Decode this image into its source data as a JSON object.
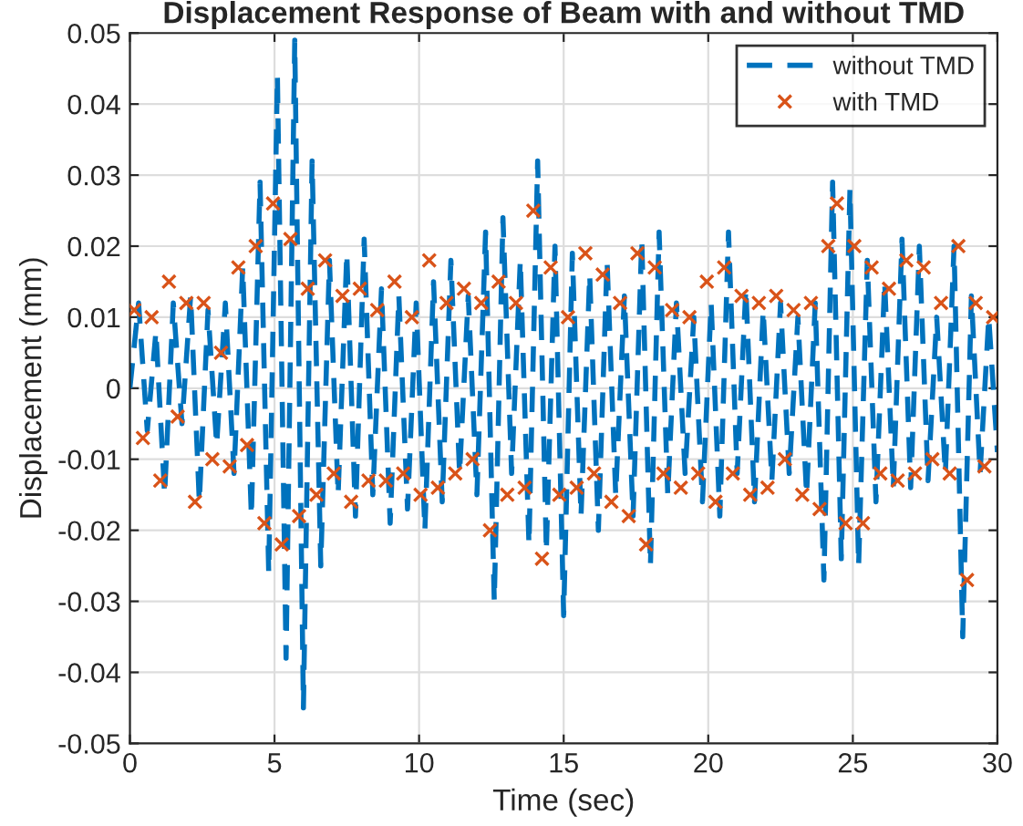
{
  "chart_data": {
    "type": "line",
    "title": "Displacement Response of Beam with and without TMD",
    "xlabel": "Time (sec)",
    "ylabel": "Displacement (mm)",
    "xlim": [
      0,
      30
    ],
    "xticks": [
      0,
      5,
      10,
      15,
      20,
      25,
      30
    ],
    "ylim": [
      -0.05,
      0.05
    ],
    "yticks": [
      -0.05,
      -0.04,
      -0.03,
      -0.02,
      -0.01,
      0,
      0.01,
      0.02,
      0.03,
      0.04,
      0.05
    ],
    "grid": true,
    "legend": "top right",
    "series": [
      {
        "name": "without TMD",
        "line_style": "dashed",
        "marker": "none",
        "color": "#0072bd",
        "x": [
          0,
          0.3,
          0.6,
          0.9,
          1.2,
          1.5,
          1.8,
          2.1,
          2.4,
          2.7,
          3.0,
          3.3,
          3.6,
          3.9,
          4.2,
          4.5,
          4.8,
          5.1,
          5.4,
          5.7,
          6.0,
          6.3,
          6.6,
          6.9,
          7.2,
          7.5,
          7.8,
          8.1,
          8.4,
          8.7,
          9.0,
          9.3,
          9.6,
          9.9,
          10.2,
          10.5,
          10.8,
          11.1,
          11.4,
          11.7,
          12.0,
          12.3,
          12.6,
          12.9,
          13.2,
          13.5,
          13.8,
          14.1,
          14.4,
          14.7,
          15.0,
          15.3,
          15.6,
          15.9,
          16.2,
          16.5,
          16.8,
          17.1,
          17.4,
          17.7,
          18.0,
          18.3,
          18.6,
          18.9,
          19.2,
          19.5,
          19.8,
          20.1,
          20.4,
          20.7,
          21.0,
          21.3,
          21.6,
          21.9,
          22.2,
          22.5,
          22.8,
          23.1,
          23.4,
          23.7,
          24.0,
          24.3,
          24.6,
          24.9,
          25.2,
          25.5,
          25.8,
          26.1,
          26.4,
          26.7,
          27.0,
          27.3,
          27.6,
          27.9,
          28.2,
          28.5,
          28.8,
          29.1,
          29.4,
          29.7,
          30.0
        ],
        "values": [
          0,
          0.012,
          -0.006,
          0.008,
          -0.015,
          0.012,
          -0.005,
          0.013,
          -0.016,
          0.011,
          -0.008,
          0.012,
          -0.012,
          0.017,
          -0.018,
          0.029,
          -0.026,
          0.044,
          -0.038,
          0.049,
          -0.045,
          0.032,
          -0.025,
          0.018,
          -0.015,
          0.019,
          -0.018,
          0.021,
          -0.015,
          0.014,
          -0.019,
          0.013,
          -0.017,
          0.012,
          -0.02,
          0.015,
          -0.016,
          0.018,
          -0.012,
          0.013,
          -0.015,
          0.022,
          -0.03,
          0.024,
          -0.012,
          0.018,
          -0.022,
          0.032,
          -0.023,
          0.02,
          -0.032,
          0.019,
          -0.018,
          0.016,
          -0.02,
          0.018,
          -0.015,
          0.013,
          -0.018,
          0.021,
          -0.025,
          0.022,
          -0.015,
          0.012,
          -0.012,
          0.01,
          -0.016,
          0.012,
          -0.018,
          0.022,
          -0.012,
          0.014,
          -0.016,
          0.011,
          -0.013,
          0.012,
          -0.012,
          0.01,
          -0.015,
          0.012,
          -0.027,
          0.029,
          -0.024,
          0.028,
          -0.025,
          0.018,
          -0.016,
          0.015,
          -0.014,
          0.021,
          -0.014,
          0.02,
          -0.013,
          0.01,
          -0.012,
          0.02,
          -0.035,
          0.013,
          -0.012,
          0.01,
          -0.009
        ]
      },
      {
        "name": "with TMD",
        "type": "scatter",
        "marker": "cross",
        "color": "#d95319",
        "x": [
          0.15,
          0.45,
          0.75,
          1.05,
          1.35,
          1.65,
          1.95,
          2.25,
          2.55,
          2.85,
          3.15,
          3.45,
          3.75,
          4.05,
          4.35,
          4.65,
          4.95,
          5.25,
          5.55,
          5.85,
          6.15,
          6.45,
          6.75,
          7.05,
          7.35,
          7.65,
          7.95,
          8.25,
          8.55,
          8.85,
          9.15,
          9.45,
          9.75,
          10.05,
          10.35,
          10.65,
          10.95,
          11.25,
          11.55,
          11.85,
          12.15,
          12.45,
          12.75,
          13.05,
          13.35,
          13.65,
          13.95,
          14.25,
          14.55,
          14.85,
          15.15,
          15.45,
          15.75,
          16.05,
          16.35,
          16.65,
          16.95,
          17.25,
          17.55,
          17.85,
          18.15,
          18.45,
          18.75,
          19.05,
          19.35,
          19.65,
          19.95,
          20.25,
          20.55,
          20.85,
          21.15,
          21.45,
          21.75,
          22.05,
          22.35,
          22.65,
          22.95,
          23.25,
          23.55,
          23.85,
          24.15,
          24.45,
          24.75,
          25.05,
          25.35,
          25.65,
          25.95,
          26.25,
          26.55,
          26.85,
          27.15,
          27.45,
          27.75,
          28.05,
          28.35,
          28.65,
          28.95,
          29.25,
          29.55,
          29.85
        ],
        "values": [
          0.011,
          -0.007,
          0.01,
          -0.013,
          0.015,
          -0.004,
          0.012,
          -0.016,
          0.012,
          -0.01,
          0.005,
          -0.011,
          0.017,
          -0.008,
          0.02,
          -0.019,
          0.026,
          -0.022,
          0.021,
          -0.018,
          0.014,
          -0.015,
          0.018,
          -0.012,
          0.013,
          -0.016,
          0.014,
          -0.013,
          0.011,
          -0.013,
          0.015,
          -0.012,
          0.01,
          -0.015,
          0.018,
          -0.014,
          0.012,
          -0.012,
          0.014,
          -0.01,
          0.012,
          -0.02,
          0.015,
          -0.015,
          0.012,
          -0.014,
          0.025,
          -0.024,
          0.017,
          -0.015,
          0.01,
          -0.014,
          0.019,
          -0.012,
          0.016,
          -0.016,
          0.012,
          -0.018,
          0.019,
          -0.022,
          0.017,
          -0.012,
          0.011,
          -0.014,
          0.01,
          -0.012,
          0.015,
          -0.016,
          0.017,
          -0.012,
          0.013,
          -0.015,
          0.012,
          -0.014,
          0.013,
          -0.01,
          0.011,
          -0.015,
          0.012,
          -0.017,
          0.02,
          0.026,
          -0.019,
          0.02,
          -0.019,
          0.017,
          -0.012,
          0.014,
          -0.013,
          0.018,
          -0.012,
          0.017,
          -0.01,
          0.012,
          -0.012,
          0.02,
          -0.027,
          0.012,
          -0.011,
          0.01
        ]
      }
    ]
  }
}
